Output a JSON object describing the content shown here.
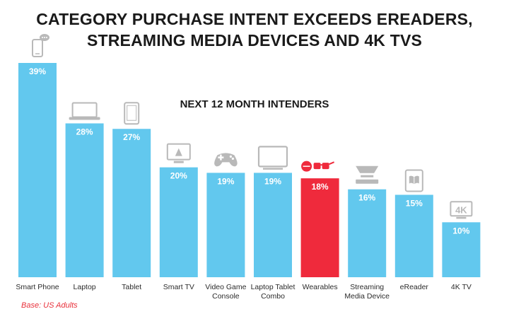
{
  "title_line1": "CATEGORY PURCHASE INTENT EXCEEDS EREADERS,",
  "title_line2": "STREAMING MEDIA DEVICES AND 4K TVS",
  "subtitle": "NEXT 12 MONTH INTENDERS",
  "footnote": "Base: US Adults",
  "colors": {
    "bar": "#62c8ee",
    "highlight": "#ef2a3c",
    "icon": "#b9b9b9"
  },
  "chart_data": {
    "type": "bar",
    "title": "CATEGORY PURCHASE INTENT EXCEEDS EREADERS, STREAMING MEDIA DEVICES AND 4K TVS",
    "subtitle": "NEXT 12 MONTH INTENDERS",
    "categories": [
      [
        "Smart Phone"
      ],
      [
        "Laptop"
      ],
      [
        "Tablet"
      ],
      [
        "Smart TV"
      ],
      [
        "Video Game",
        "Console"
      ],
      [
        "Laptop Tablet",
        "Combo"
      ],
      [
        "Wearables"
      ],
      [
        "Streaming",
        "Media Device"
      ],
      [
        "eReader"
      ],
      [
        "4K TV"
      ]
    ],
    "values": [
      39,
      28,
      27,
      20,
      19,
      19,
      18,
      16,
      15,
      10
    ],
    "value_labels": [
      "39%",
      "28%",
      "27%",
      "20%",
      "19%",
      "19%",
      "18%",
      "16%",
      "15%",
      "10%"
    ],
    "highlight_index": 6,
    "icons": [
      "smartphone-icon",
      "laptop-icon",
      "tablet-icon",
      "smart-tv-icon",
      "game-controller-icon",
      "laptop-tablet-combo-icon",
      "wearables-icon",
      "streaming-device-icon",
      "ereader-icon",
      "4k-tv-icon"
    ],
    "icon_text_4k": "4K",
    "xlabel": "",
    "ylabel": "",
    "ylim": [
      0,
      39
    ],
    "grid": false,
    "legend": "none"
  }
}
